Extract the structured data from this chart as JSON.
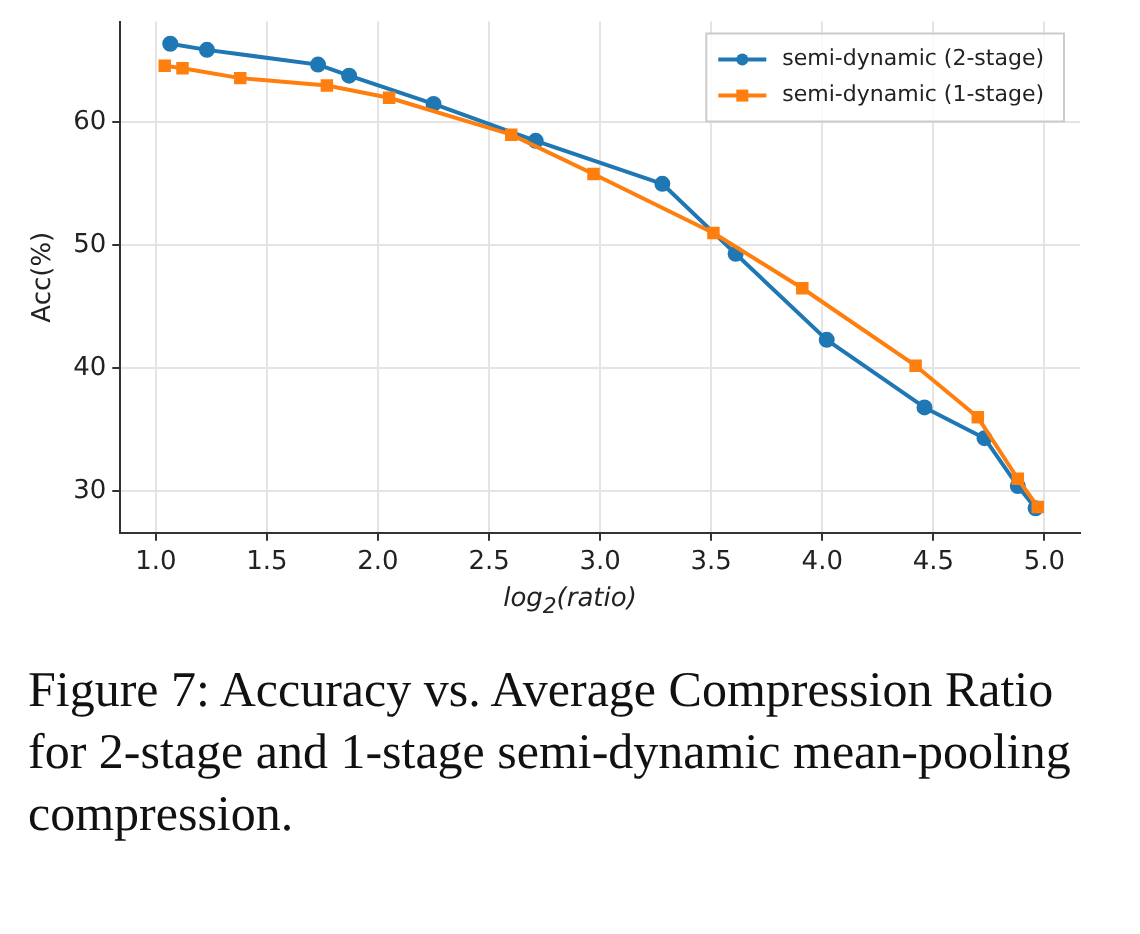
{
  "chart_data": {
    "type": "line",
    "xlabel": "log$_{2}$(ratio)",
    "ylabel": "Acc(%)",
    "xlim": [
      0.84,
      5.16
    ],
    "xticks": [
      {
        "value": 1,
        "label": "1.0"
      },
      {
        "value": 1.5,
        "label": "1.5"
      },
      {
        "value": 2,
        "label": "2.0"
      },
      {
        "value": 2.5,
        "label": "2.5"
      },
      {
        "value": 3,
        "label": "3.0"
      },
      {
        "value": 3.5,
        "label": "3.5"
      },
      {
        "value": 4,
        "label": "4.0"
      },
      {
        "value": 4.5,
        "label": "4.5"
      },
      {
        "value": 5,
        "label": "5.0"
      }
    ],
    "ylim": [
      26.6,
      68.2
    ],
    "yticks": [
      30,
      40,
      50,
      60
    ],
    "grid": true,
    "legend": "top right",
    "series": [
      {
        "name": "semi-dynamic (2-stage)",
        "color": "#1f77b4",
        "marker": "circle",
        "x": [
          1.065,
          1.23,
          1.73,
          1.87,
          2.25,
          2.71,
          3.28,
          3.61,
          4.02,
          4.46,
          4.73,
          4.88,
          4.96
        ],
        "values": [
          66.4,
          65.9,
          64.7,
          63.8,
          61.5,
          58.5,
          55.0,
          49.3,
          42.3,
          36.8,
          34.3,
          30.4,
          28.6
        ]
      },
      {
        "name": "semi-dynamic (1-stage)",
        "color": "#ff7f0e",
        "marker": "square",
        "x": [
          1.04,
          1.12,
          1.38,
          1.77,
          2.05,
          2.6,
          2.97,
          3.51,
          3.91,
          4.42,
          4.7,
          4.88,
          4.97
        ],
        "values": [
          64.6,
          64.4,
          63.6,
          63.0,
          62.0,
          59.0,
          55.8,
          51.0,
          46.5,
          40.2,
          36.0,
          31.0,
          28.7
        ]
      }
    ],
    "annotations": [
      "Figure 7: Accuracy vs. Average Compression Ratio for 2-stage and 1-stage semi-dynamic mean-pooling compression."
    ]
  }
}
